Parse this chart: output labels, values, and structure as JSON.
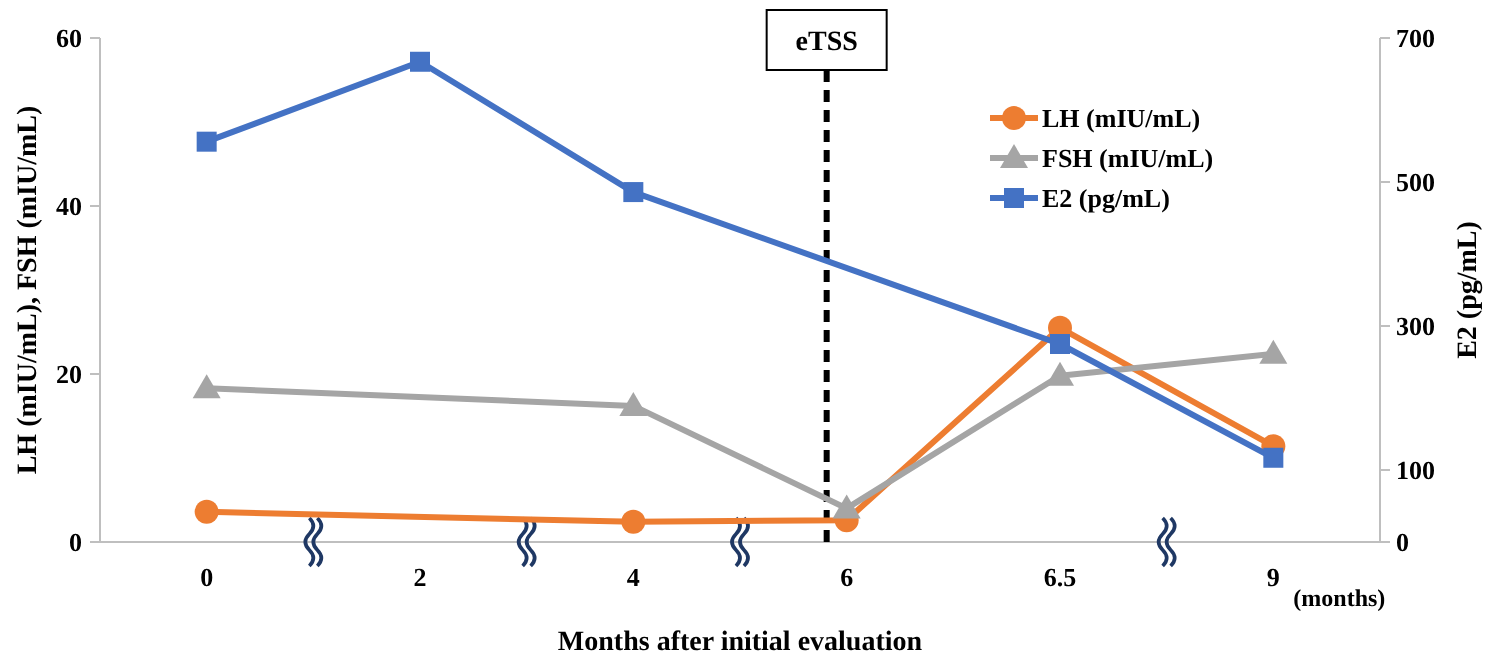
{
  "chart_data": {
    "type": "line",
    "xlabel": "Months after initial evaluation",
    "ylabel": "LH (mIU/mL), FSH (mIU/mL)",
    "y2label": "E2 (pg/mL)",
    "categories": [
      "0",
      "2",
      "4",
      "6",
      "6.5",
      "9"
    ],
    "series": [
      {
        "name": "LH (mIU/mL)",
        "color": "#ed7d31",
        "marker": "circle",
        "values": [
          3.6,
          null,
          2.4,
          2.6,
          25.5,
          11.4
        ]
      },
      {
        "name": "FSH (mIU/mL)",
        "color": "#a5a5a5",
        "marker": "triangle",
        "values": [
          18.3,
          null,
          16.2,
          4,
          19.8,
          22.4
        ]
      },
      {
        "name": "E2 (pg/mL)",
        "color": "#4472c4",
        "marker": "square",
        "axis": "y2",
        "values": [
          556,
          667,
          486,
          null,
          275,
          117
        ]
      }
    ],
    "ylim": [
      0,
      60
    ],
    "yticks": [
      0,
      20,
      40,
      60
    ],
    "y2lim": [
      0,
      700
    ],
    "y2ticks": [
      0,
      100,
      300,
      500,
      700
    ],
    "ref_lines": [
      {
        "axis": "x",
        "value": "6",
        "label": "eTSS",
        "color": "#000000",
        "line_style": "dashed"
      }
    ],
    "annotations": [
      "(months)"
    ],
    "legend": "top right",
    "grid": false
  }
}
